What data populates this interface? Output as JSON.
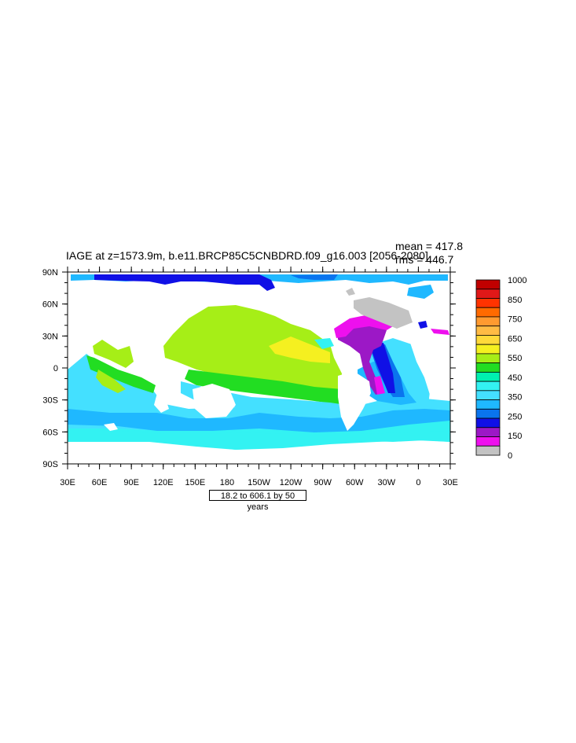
{
  "title": "IAGE at z=1573.9m, b.e11.BRCP85C5CNBDRD.f09_g16.003 [2056-2080]",
  "stats": {
    "mean": "mean = 417.8",
    "rms": "rms = 446.7"
  },
  "contour_note": "18.2 to 606.1 by 50 years",
  "lon_labels": [
    "30E",
    "60E",
    "90E",
    "120E",
    "150E",
    "180",
    "150W",
    "120W",
    "90W",
    "60W",
    "30W",
    "0",
    "30E"
  ],
  "lat_labels": [
    "90N",
    "60N",
    "30N",
    "0",
    "30S",
    "60S",
    "90S"
  ],
  "colorbar": {
    "labels": [
      "1000",
      "850",
      "750",
      "650",
      "550",
      "450",
      "350",
      "250",
      "150",
      "0"
    ],
    "colors": [
      "#c00000",
      "#e01818",
      "#ff3300",
      "#ff6a00",
      "#ff9a30",
      "#ffbb44",
      "#ffd93a",
      "#f5f020",
      "#a6ee17",
      "#22dd22",
      "#00f0b0",
      "#33f2f2",
      "#44e0ff",
      "#1fb8ff",
      "#0a74ee",
      "#1010e6",
      "#9c18c6",
      "#ee10ee",
      "#c3c3c3"
    ]
  },
  "legend_colors": {
    "land": "#ffffff",
    "young": "#c3c3c3",
    "magenta": "#ee10ee",
    "purple": "#9c18c6",
    "blue": "#1010e6",
    "mid_blue": "#0a74ee",
    "light_blue": "#1fb8ff",
    "cyan": "#44e0ff",
    "aqua": "#33f2f2",
    "green": "#22dd22",
    "lime": "#a6ee17",
    "yellow": "#f5f020"
  }
}
